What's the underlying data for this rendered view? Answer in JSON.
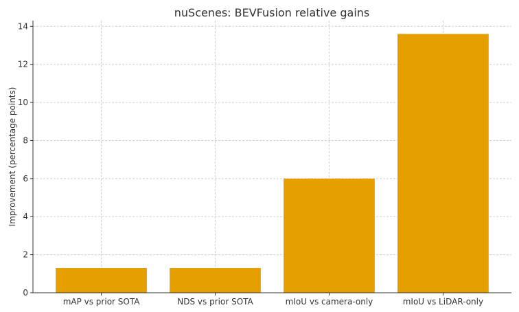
{
  "chart_data": {
    "type": "bar",
    "title": "nuScenes: BEVFusion relative gains",
    "xlabel": "",
    "ylabel": "Improvement (percentage points)",
    "categories": [
      "mAP vs prior SOTA",
      "NDS vs prior SOTA",
      "mIoU vs camera-only",
      "mIoU vs LiDAR-only"
    ],
    "values": [
      1.3,
      1.3,
      6.0,
      13.6
    ],
    "ylim": [
      0,
      14.3
    ],
    "yticks": [
      0,
      2,
      4,
      6,
      8,
      10,
      12,
      14
    ],
    "grid": true,
    "bar_color": "#E5A000"
  }
}
